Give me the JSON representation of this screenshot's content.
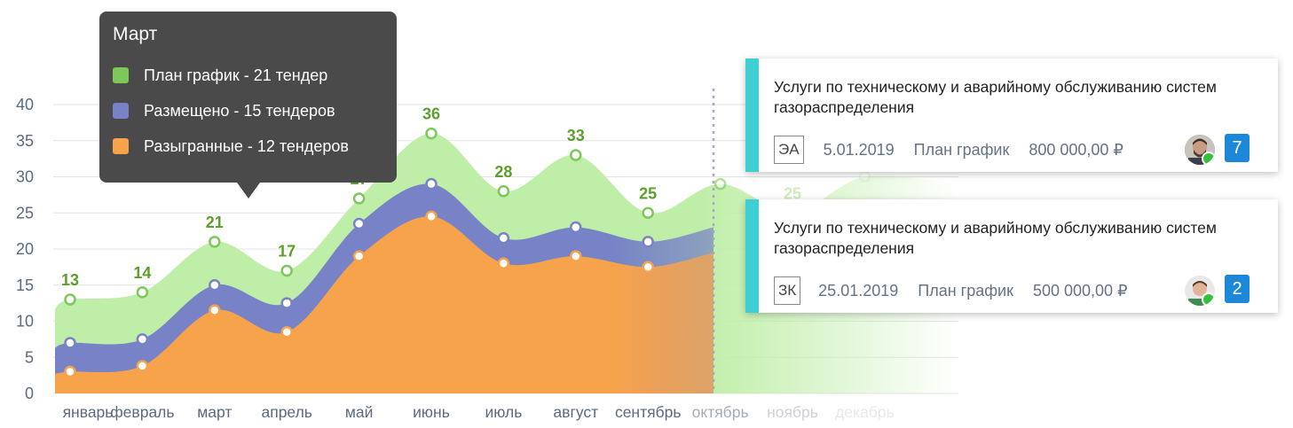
{
  "chart_data": {
    "type": "area",
    "categories": [
      "январь",
      "февраль",
      "март",
      "апрель",
      "май",
      "июнь",
      "июль",
      "август",
      "сентябрь",
      "октябрь",
      "ноябрь",
      "декабрь"
    ],
    "y_ticks": [
      0,
      5,
      10,
      15,
      20,
      25,
      30,
      35,
      40
    ],
    "ylim": [
      0,
      40
    ],
    "series": [
      {
        "name": "План график",
        "color": "#7cc95a",
        "values": [
          13,
          14,
          21,
          17,
          27,
          36,
          28,
          33,
          25,
          29,
          25,
          30
        ],
        "labels": [
          "13",
          "14",
          "21",
          "17",
          "27",
          "36",
          "28",
          "33",
          "25",
          "",
          "25",
          ""
        ]
      },
      {
        "name": "Размещено",
        "color": "#7783c6",
        "values": [
          7,
          7.5,
          15,
          12.5,
          23.5,
          29,
          21.5,
          23,
          21,
          null,
          null,
          null
        ]
      },
      {
        "name": "Разыгранные",
        "color": "#f7a34c",
        "values": [
          3,
          3.8,
          11.5,
          8.5,
          19,
          24.5,
          18,
          19,
          17.5,
          null,
          null,
          null
        ]
      }
    ],
    "grid": true,
    "forecast_from": "октябрь"
  },
  "tooltip": {
    "title": "Март",
    "rows": [
      {
        "text": "План график - 21 тендер",
        "color": "#7cc95a"
      },
      {
        "text": "Размещено - 15 тендеров",
        "color": "#7783c6"
      },
      {
        "text": "Разыгранные - 12 тендеров",
        "color": "#f7a34c"
      }
    ]
  },
  "cards": [
    {
      "title": "Услуги по техническому и аварийному обслуживанию систем газораспределения",
      "code": "ЭА",
      "date": "5.01.2019",
      "status": "План график",
      "amount": "800 000,00 ₽",
      "count": "7"
    },
    {
      "title": "Услуги по техническому и аварийному обслуживанию систем газораспределения",
      "code": "ЗК",
      "date": "25.01.2019",
      "status": "План график",
      "amount": "500 000,00 ₽",
      "count": "2"
    }
  ]
}
